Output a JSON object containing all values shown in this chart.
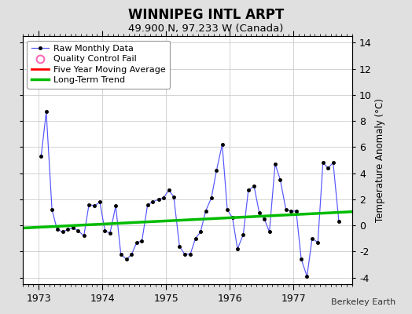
{
  "title": "WINNIPEG INTL ARPT",
  "subtitle": "49.900 N, 97.233 W (Canada)",
  "ylabel_right": "Temperature Anomaly (°C)",
  "watermark": "Berkeley Earth",
  "background_color": "#e0e0e0",
  "plot_bg_color": "#ffffff",
  "xlim": [
    1972.75,
    1977.92
  ],
  "ylim": [
    -4.5,
    14.5
  ],
  "yticks": [
    -4,
    -2,
    0,
    2,
    4,
    6,
    8,
    10,
    12,
    14
  ],
  "xticks": [
    1973,
    1974,
    1975,
    1976,
    1977
  ],
  "raw_x": [
    1973.04,
    1973.12,
    1973.21,
    1973.29,
    1973.38,
    1973.46,
    1973.54,
    1973.62,
    1973.71,
    1973.79,
    1973.88,
    1973.96,
    1974.04,
    1974.12,
    1974.21,
    1974.29,
    1974.38,
    1974.46,
    1974.54,
    1974.62,
    1974.71,
    1974.79,
    1974.88,
    1974.96,
    1975.04,
    1975.12,
    1975.21,
    1975.29,
    1975.38,
    1975.46,
    1975.54,
    1975.62,
    1975.71,
    1975.79,
    1975.88,
    1975.96,
    1976.04,
    1976.12,
    1976.21,
    1976.29,
    1976.38,
    1976.46,
    1976.54,
    1976.62,
    1976.71,
    1976.79,
    1976.88,
    1976.96,
    1977.04,
    1977.12,
    1977.21,
    1977.29,
    1977.38,
    1977.46,
    1977.54,
    1977.62,
    1977.71
  ],
  "raw_y": [
    5.3,
    8.7,
    1.2,
    -0.3,
    -0.5,
    -0.3,
    -0.2,
    -0.4,
    -0.8,
    1.6,
    1.5,
    1.8,
    -0.4,
    -0.6,
    1.5,
    -2.2,
    -2.6,
    -2.2,
    -1.3,
    -1.2,
    1.6,
    1.8,
    2.0,
    2.1,
    2.7,
    2.2,
    -1.6,
    -2.2,
    -2.2,
    -1.0,
    -0.5,
    1.1,
    2.1,
    4.2,
    6.2,
    1.2,
    0.6,
    -1.8,
    -0.7,
    2.7,
    3.0,
    1.0,
    0.5,
    -0.5,
    4.7,
    3.5,
    1.2,
    1.1,
    1.1,
    -2.6,
    -3.9,
    -1.0,
    -1.3,
    4.8,
    4.4,
    4.8,
    0.3
  ],
  "trend_x": [
    1972.75,
    1977.92
  ],
  "trend_y": [
    -0.2,
    1.05
  ],
  "line_color": "#5555ff",
  "marker_color": "#000000",
  "trend_color": "#00bb00",
  "moving_avg_color": "#ff0000",
  "legend_labels": [
    "Raw Monthly Data",
    "Quality Control Fail",
    "Five Year Moving Average",
    "Long-Term Trend"
  ]
}
